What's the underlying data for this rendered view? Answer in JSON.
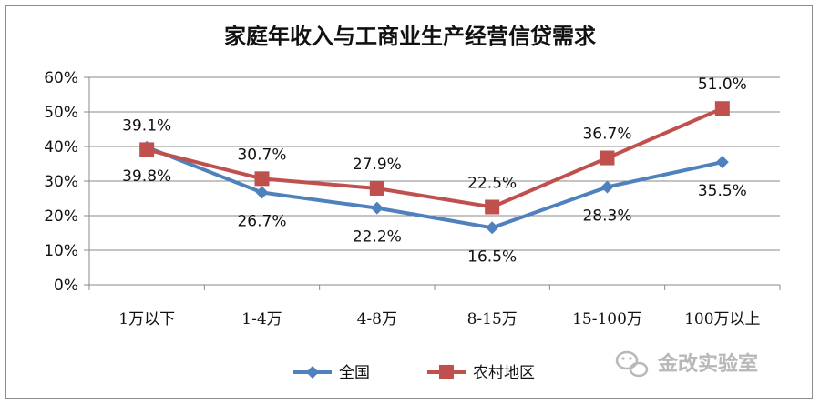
{
  "chart_data": {
    "type": "line",
    "title": "家庭年收入与工商业生产经营信贷需求",
    "categories": [
      "1万以下",
      "1-4万",
      "4-8万",
      "8-15万",
      "15-100万",
      "100万以上"
    ],
    "ylim": [
      0,
      0.6
    ],
    "yticks": [
      "0%",
      "10%",
      "20%",
      "30%",
      "40%",
      "50%",
      "60%"
    ],
    "grid": true,
    "legend_position": "bottom",
    "series": [
      {
        "name": "全国",
        "color": "#4f81bd",
        "marker": "diamond",
        "values": [
          0.398,
          0.267,
          0.222,
          0.165,
          0.283,
          0.355
        ],
        "labels": [
          "39.8%",
          "26.7%",
          "22.2%",
          "16.5%",
          "28.3%",
          "35.5%"
        ]
      },
      {
        "name": "农村地区",
        "color": "#c0504d",
        "marker": "square",
        "values": [
          0.391,
          0.307,
          0.279,
          0.225,
          0.367,
          0.51
        ],
        "labels": [
          "39.1%",
          "30.7%",
          "27.9%",
          "22.5%",
          "36.7%",
          "51.0%"
        ]
      }
    ]
  },
  "watermark": {
    "text": "金改实验室",
    "icon": "wechat-icon"
  }
}
